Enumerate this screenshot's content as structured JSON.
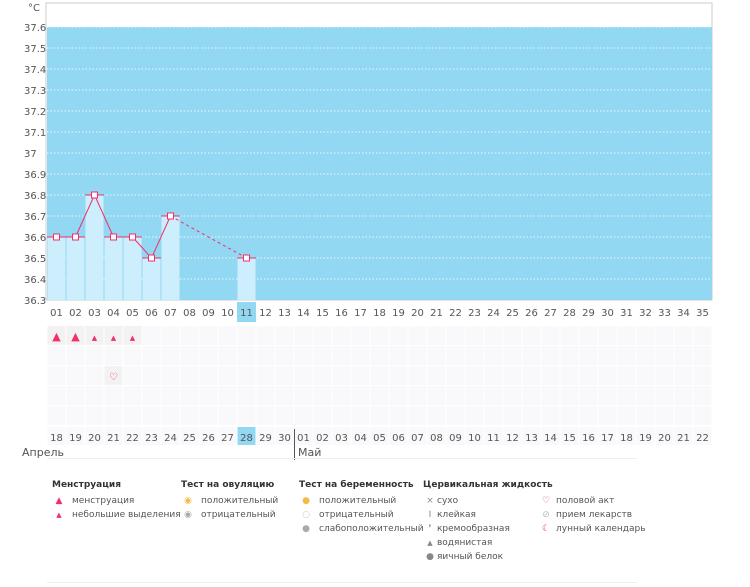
{
  "chart_data": {
    "type": "bar-line",
    "unit": "°C",
    "ylim": [
      36.3,
      37.6
    ],
    "yticks": [
      "36.3",
      "36.4",
      "36.5",
      "36.6",
      "36.7",
      "36.8",
      "36.9",
      "37",
      "37.1",
      "37.2",
      "37.3",
      "37.4",
      "37.5",
      "37.6"
    ],
    "cycle_days": [
      "01",
      "02",
      "03",
      "04",
      "05",
      "06",
      "07",
      "08",
      "09",
      "10",
      "11",
      "12",
      "13",
      "14",
      "15",
      "16",
      "17",
      "18",
      "19",
      "20",
      "21",
      "22",
      "23",
      "24",
      "25",
      "26",
      "27",
      "28",
      "29",
      "30",
      "31",
      "32",
      "33",
      "34",
      "35"
    ],
    "temperatures": [
      {
        "day": 1,
        "value": 36.6
      },
      {
        "day": 2,
        "value": 36.6
      },
      {
        "day": 3,
        "value": 36.8
      },
      {
        "day": 4,
        "value": 36.6
      },
      {
        "day": 5,
        "value": 36.6
      },
      {
        "day": 6,
        "value": 36.5
      },
      {
        "day": 7,
        "value": 36.7
      },
      {
        "day": 11,
        "value": 36.5
      }
    ],
    "current_day": 11,
    "calendar_dates": [
      "18",
      "19",
      "20",
      "21",
      "22",
      "23",
      "24",
      "25",
      "26",
      "27",
      "28",
      "29",
      "30",
      "01",
      "02",
      "03",
      "04",
      "05",
      "06",
      "07",
      "08",
      "09",
      "10",
      "11",
      "12",
      "13",
      "14",
      "15",
      "16",
      "17",
      "18",
      "19",
      "20",
      "21",
      "22"
    ],
    "weekend_indices": [
      3,
      4,
      11,
      17,
      18,
      24,
      25,
      31,
      32
    ],
    "months": [
      {
        "label": "Апрель"
      },
      {
        "label": "Май"
      }
    ],
    "menstruation": [
      {
        "day": 1,
        "type": "heavy"
      },
      {
        "day": 2,
        "type": "heavy"
      },
      {
        "day": 3,
        "type": "light"
      },
      {
        "day": 4,
        "type": "light"
      },
      {
        "day": 5,
        "type": "light"
      }
    ],
    "intercourse_days": [
      4
    ],
    "colors": {
      "background": "#93d8f2",
      "bar": "#cdeefc",
      "line": "#f0306a",
      "weekend": "#f0306a",
      "today": "#93d8f2"
    }
  },
  "legend": {
    "menstruation": {
      "title": "Менструация",
      "items": [
        "менструация",
        "небольшие выделения"
      ]
    },
    "ovulation": {
      "title": "Тест на овуляцию",
      "items": [
        "положительный",
        "отрицательный"
      ]
    },
    "pregnancy": {
      "title": "Тест на беременность",
      "items": [
        "положительный",
        "отрицательный",
        "слабоположительный"
      ]
    },
    "cervical": {
      "title": "Цервикальная жидкость",
      "items": [
        "сухо",
        "клейкая",
        "кремообразная",
        "водянистая",
        "яичный белок"
      ]
    },
    "other": {
      "items": [
        "половой акт",
        "прием лекарств",
        "лунный календарь"
      ]
    }
  }
}
